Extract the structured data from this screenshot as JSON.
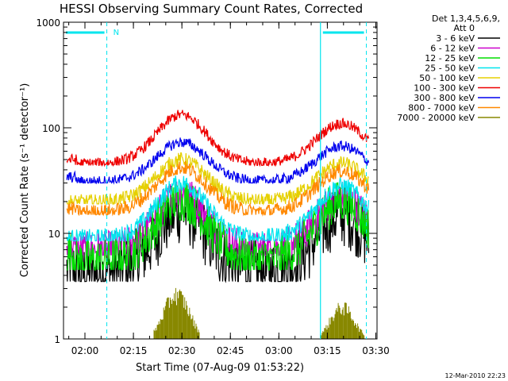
{
  "chart_data": {
    "type": "line",
    "title": "HESSI Observing Summary Count Rates, Corrected",
    "xlabel": "Start Time (07-Aug-09 01:53:22)",
    "ylabel": "Corrected Count Rate (s⁻¹ detector⁻¹)",
    "yscale": "log",
    "ylim": [
      1,
      1000
    ],
    "xlim_minutes_after_0153_22": [
      0,
      97
    ],
    "x_ticks": [
      "02:00",
      "02:15",
      "02:30",
      "02:45",
      "03:00",
      "03:15",
      "03:30"
    ],
    "x_tick_minutes": [
      6.63,
      21.63,
      36.63,
      51.63,
      66.63,
      81.63,
      96.63
    ],
    "y_ticks": [
      "1",
      "10",
      "100",
      "1000"
    ],
    "y_tick_values": [
      1,
      10,
      100,
      1000
    ],
    "legend_header": [
      "Det 1,3,4,5,6,9,",
      "Att 0"
    ],
    "legend_placement": "right",
    "night_marker_label": "N",
    "night_intervals_minutes": [
      [
        0,
        13.4
      ],
      [
        79.5,
        93.7
      ]
    ],
    "date_stamp": "12-Mar-2010 22:23",
    "series": [
      {
        "name": "3 - 6 keV",
        "color": "#000000",
        "base": 4.2,
        "peak1": 16,
        "peak2": 15,
        "noise": 0.18,
        "y_start": 4.5,
        "y_min": 3.5,
        "y_end": 4.5
      },
      {
        "name": "6 - 12 keV",
        "color": "#cc00cc",
        "base": 7.0,
        "peak1": 24,
        "peak2": 22,
        "noise": 0.1,
        "y_start": 7,
        "y_min": 6.2,
        "y_end": 7.5
      },
      {
        "name": "12 - 25 keV",
        "color": "#00dd00",
        "base": 5.5,
        "peak1": 21,
        "peak2": 20,
        "noise": 0.12,
        "y_start": 6.5,
        "y_min": 4.5,
        "y_end": 6.5
      },
      {
        "name": "25 - 50 keV",
        "color": "#00e5ee",
        "base": 9.0,
        "peak1": 30,
        "peak2": 28,
        "noise": 0.05,
        "y_start": 9,
        "y_min": 8.5,
        "y_end": 10
      },
      {
        "name": "50 - 100 keV",
        "color": "#e5d000",
        "base": 20,
        "peak1": 50,
        "peak2": 46,
        "noise": 0.04,
        "y_start": 20,
        "y_min": 19,
        "y_end": 22
      },
      {
        "name": "100 - 300 keV",
        "color": "#ee0000",
        "base": 46,
        "peak1": 133,
        "peak2": 110,
        "noise": 0.03,
        "y_start": 50,
        "y_min": 44,
        "y_end": 58
      },
      {
        "name": "300 - 800 keV",
        "color": "#0000ee",
        "base": 31,
        "peak1": 73,
        "peak2": 67,
        "noise": 0.03,
        "y_start": 34,
        "y_min": 30,
        "y_end": 36
      },
      {
        "name": "800 - 7000 keV",
        "color": "#ff8800",
        "base": 16,
        "peak1": 42,
        "peak2": 39,
        "noise": 0.04,
        "y_start": 17,
        "y_min": 15,
        "y_end": 18
      },
      {
        "name": "7000 - 20000 keV",
        "color": "#888800",
        "base": 1,
        "peak1": 2.8,
        "peak2": 2.0,
        "noise": 0,
        "y_start": 1,
        "y_min": 1,
        "y_end": 1
      }
    ]
  }
}
